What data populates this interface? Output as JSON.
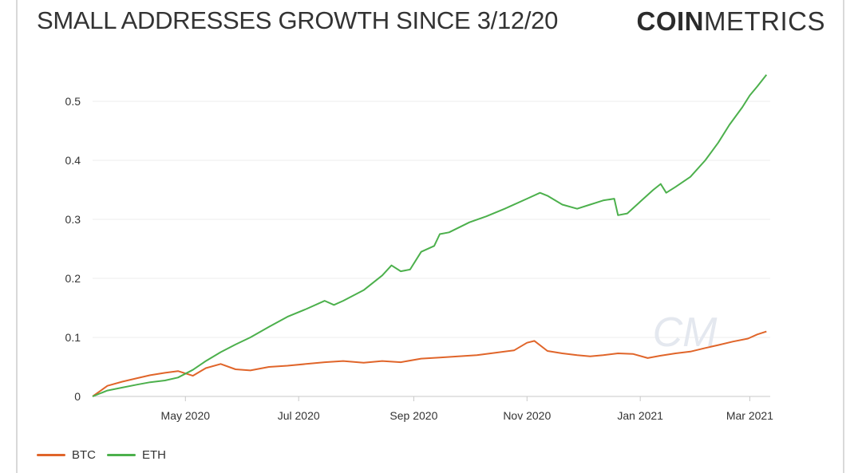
{
  "header": {
    "title": "SMALL ADDRESSES GROWTH SINCE 3/12/20",
    "brand_bold": "COIN",
    "brand_light": "METRICS"
  },
  "watermark": "CM",
  "colors": {
    "btc": "#e0652a",
    "eth": "#4cb04c",
    "grid": "#ececec",
    "axis": "#c8c8c8",
    "text": "#333333"
  },
  "chart_data": {
    "type": "line",
    "title": "SMALL ADDRESSES GROWTH SINCE 3/12/20",
    "xlabel": "",
    "ylabel": "",
    "xlim": [
      "2020-03-12",
      "2021-03-12"
    ],
    "ylim": [
      0,
      0.55
    ],
    "grid": true,
    "legend_position": "bottom-left",
    "y_ticks": [
      0,
      0.1,
      0.2,
      0.3,
      0.4,
      0.5
    ],
    "y_tick_labels": [
      "0",
      "0.1",
      "0.2",
      "0.3",
      "0.4",
      "0.5"
    ],
    "x_ticks": [
      "2020-05-01",
      "2020-07-01",
      "2020-09-01",
      "2020-11-01",
      "2021-01-01",
      "2021-03-01"
    ],
    "x_tick_labels": [
      "May 2020",
      "Jul 2020",
      "Sep 2020",
      "Nov 2020",
      "Jan 2021",
      "Mar 2021"
    ],
    "series": [
      {
        "name": "BTC",
        "color": "#e0652a",
        "x": [
          "2020-03-12",
          "2020-03-20",
          "2020-03-28",
          "2020-04-05",
          "2020-04-12",
          "2020-04-20",
          "2020-04-27",
          "2020-05-05",
          "2020-05-12",
          "2020-05-20",
          "2020-05-28",
          "2020-06-05",
          "2020-06-15",
          "2020-06-25",
          "2020-07-05",
          "2020-07-15",
          "2020-07-25",
          "2020-08-05",
          "2020-08-15",
          "2020-08-25",
          "2020-09-05",
          "2020-09-15",
          "2020-09-25",
          "2020-10-05",
          "2020-10-15",
          "2020-10-25",
          "2020-11-01",
          "2020-11-05",
          "2020-11-12",
          "2020-11-20",
          "2020-11-28",
          "2020-12-05",
          "2020-12-12",
          "2020-12-20",
          "2020-12-28",
          "2021-01-05",
          "2021-01-12",
          "2021-01-20",
          "2021-01-28",
          "2021-02-05",
          "2021-02-12",
          "2021-02-20",
          "2021-02-28",
          "2021-03-05",
          "2021-03-10"
        ],
        "y": [
          0,
          0.018,
          0.025,
          0.031,
          0.036,
          0.04,
          0.043,
          0.035,
          0.048,
          0.055,
          0.046,
          0.044,
          0.05,
          0.052,
          0.055,
          0.058,
          0.06,
          0.057,
          0.06,
          0.058,
          0.064,
          0.066,
          0.068,
          0.07,
          0.074,
          0.078,
          0.091,
          0.094,
          0.077,
          0.073,
          0.07,
          0.068,
          0.07,
          0.073,
          0.072,
          0.065,
          0.069,
          0.073,
          0.076,
          0.082,
          0.087,
          0.093,
          0.098,
          0.105,
          0.11
        ]
      },
      {
        "name": "ETH",
        "color": "#4cb04c",
        "x": [
          "2020-03-12",
          "2020-03-20",
          "2020-03-28",
          "2020-04-05",
          "2020-04-12",
          "2020-04-20",
          "2020-04-27",
          "2020-05-05",
          "2020-05-12",
          "2020-05-20",
          "2020-05-28",
          "2020-06-05",
          "2020-06-15",
          "2020-06-25",
          "2020-07-05",
          "2020-07-15",
          "2020-07-20",
          "2020-07-25",
          "2020-08-05",
          "2020-08-15",
          "2020-08-20",
          "2020-08-25",
          "2020-08-30",
          "2020-09-05",
          "2020-09-12",
          "2020-09-15",
          "2020-09-20",
          "2020-10-01",
          "2020-10-10",
          "2020-10-20",
          "2020-11-01",
          "2020-11-08",
          "2020-11-12",
          "2020-11-20",
          "2020-11-28",
          "2020-12-05",
          "2020-12-12",
          "2020-12-18",
          "2020-12-20",
          "2020-12-25",
          "2021-01-01",
          "2021-01-08",
          "2021-01-12",
          "2021-01-15",
          "2021-01-20",
          "2021-01-28",
          "2021-02-05",
          "2021-02-12",
          "2021-02-18",
          "2021-02-25",
          "2021-03-01",
          "2021-03-05",
          "2021-03-10"
        ],
        "y": [
          0,
          0.01,
          0.015,
          0.02,
          0.024,
          0.027,
          0.032,
          0.045,
          0.06,
          0.075,
          0.088,
          0.1,
          0.118,
          0.135,
          0.148,
          0.162,
          0.155,
          0.162,
          0.18,
          0.205,
          0.222,
          0.212,
          0.215,
          0.245,
          0.255,
          0.275,
          0.278,
          0.295,
          0.305,
          0.318,
          0.335,
          0.345,
          0.34,
          0.325,
          0.318,
          0.325,
          0.332,
          0.335,
          0.307,
          0.31,
          0.33,
          0.35,
          0.36,
          0.345,
          0.355,
          0.372,
          0.4,
          0.43,
          0.46,
          0.49,
          0.51,
          0.525,
          0.545
        ]
      }
    ]
  }
}
